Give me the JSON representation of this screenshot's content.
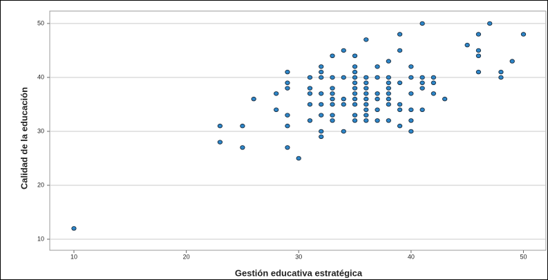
{
  "chart_data": {
    "type": "scatter",
    "x_label": "Gestión educativa estratégica",
    "y_label": "Calidad de la educación",
    "x": [
      10,
      23,
      23,
      25,
      25,
      26,
      28,
      28,
      29,
      29,
      29,
      29,
      29,
      29,
      30,
      31,
      31,
      31,
      31,
      31,
      32,
      32,
      32,
      32,
      32,
      32,
      32,
      32,
      33,
      33,
      33,
      33,
      33,
      33,
      33,
      33,
      34,
      34,
      34,
      34,
      34,
      35,
      35,
      35,
      35,
      35,
      35,
      35,
      35,
      35,
      35,
      35,
      36,
      36,
      36,
      36,
      36,
      36,
      36,
      36,
      36,
      36,
      37,
      37,
      37,
      37,
      37,
      37,
      38,
      38,
      38,
      38,
      38,
      38,
      38,
      38,
      39,
      39,
      39,
      39,
      39,
      39,
      40,
      40,
      40,
      40,
      40,
      40,
      41,
      41,
      41,
      41,
      41,
      42,
      42,
      42,
      43,
      45,
      46,
      46,
      46,
      46,
      47,
      48,
      48,
      49,
      50
    ],
    "values": [
      12,
      31,
      28,
      31,
      27,
      36,
      37,
      34,
      41,
      39,
      38,
      33,
      31,
      27,
      25,
      40,
      38,
      37,
      35,
      32,
      42,
      41,
      40,
      37,
      35,
      33,
      30,
      29,
      44,
      40,
      38,
      37,
      36,
      35,
      33,
      32,
      45,
      40,
      36,
      35,
      30,
      44,
      42,
      41,
      40,
      39,
      38,
      37,
      36,
      35,
      33,
      32,
      47,
      40,
      39,
      38,
      37,
      36,
      35,
      34,
      33,
      32,
      42,
      40,
      37,
      36,
      34,
      32,
      43,
      40,
      39,
      38,
      37,
      36,
      35,
      32,
      48,
      45,
      39,
      35,
      34,
      31,
      42,
      40,
      37,
      34,
      32,
      30,
      50,
      40,
      39,
      38,
      34,
      40,
      39,
      37,
      36,
      46,
      48,
      45,
      44,
      41,
      50,
      41,
      40,
      43,
      48
    ],
    "color": "#2d86c9",
    "xlim": [
      7.85,
      52
    ],
    "ylim": [
      7.95,
      52.3
    ],
    "xticks": [
      10,
      20,
      30,
      40,
      50
    ],
    "yticks": [
      10,
      20,
      30,
      40,
      50
    ],
    "grid": true
  }
}
